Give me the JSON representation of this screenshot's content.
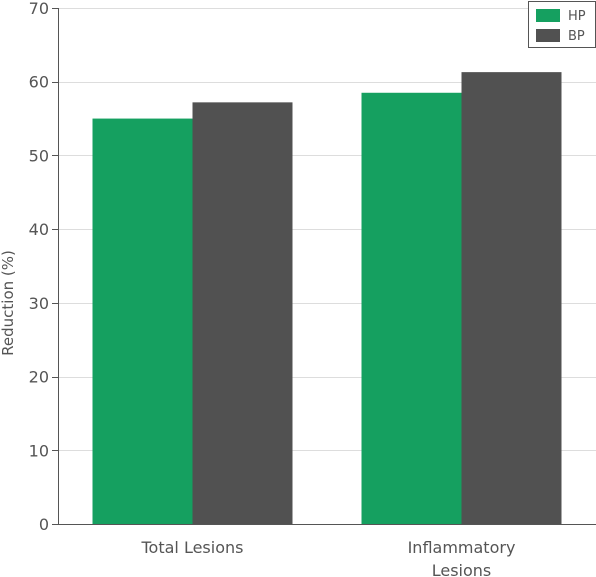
{
  "chart_data": {
    "type": "bar",
    "title": "",
    "xlabel": "",
    "ylabel": "Reduction (%)",
    "ylim": [
      0,
      70
    ],
    "yticks": [
      0,
      10,
      20,
      30,
      40,
      50,
      60,
      70
    ],
    "grid": true,
    "legend_position": "top-right",
    "categories": [
      {
        "lines": [
          "Total Lesions"
        ]
      },
      {
        "lines": [
          "Inflammatory",
          "Lesions"
        ]
      }
    ],
    "series": [
      {
        "name": "HP",
        "color": "#15a060",
        "values": [
          55,
          58.5
        ]
      },
      {
        "name": "BP",
        "color": "#515151",
        "values": [
          57.2,
          61.3
        ]
      }
    ]
  }
}
